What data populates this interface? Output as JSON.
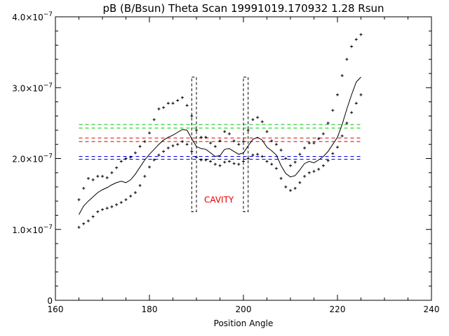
{
  "chart_data": {
    "type": "scatter",
    "title": "pB (B/Bsun) Theta Scan 19991019.170932 1.28 Rsun",
    "xlabel": "Position Angle",
    "ylabel": "",
    "xlim": [
      160,
      240
    ],
    "ylim": [
      0,
      4e-07
    ],
    "x_ticks": [
      160,
      180,
      200,
      220,
      240
    ],
    "x_tick_labels": [
      "160",
      "180",
      "200",
      "220",
      "240"
    ],
    "y_ticks": [
      0,
      1e-07,
      2e-07,
      3e-07,
      4e-07
    ],
    "y_tick_labels": [
      {
        "mant": "0",
        "exp": ""
      },
      {
        "mant": "1.0×10",
        "exp": "−7"
      },
      {
        "mant": "2.0×10",
        "exp": "−7"
      },
      {
        "mant": "3.0×10",
        "exp": "−7"
      },
      {
        "mant": "4.0×10",
        "exp": "−7"
      }
    ],
    "grid": false,
    "colors": {
      "axes": "#000000",
      "green": "#00c800",
      "red": "#e00000",
      "blue": "#0000e0"
    },
    "series": [
      {
        "style": "line",
        "x": [
          165,
          166,
          167,
          168,
          169,
          170,
          171,
          172,
          173,
          174,
          175,
          176,
          177,
          178,
          179,
          180,
          181,
          182,
          183,
          184,
          185,
          186,
          187,
          188,
          189,
          190,
          191,
          192,
          193,
          194,
          195,
          196,
          197,
          198,
          199,
          200,
          201,
          202,
          203,
          204,
          205,
          206,
          207,
          208,
          209,
          210,
          211,
          212,
          213,
          214,
          215,
          216,
          217,
          218,
          219,
          220,
          221,
          222,
          223,
          224,
          225
        ],
        "y": [
          1.21e-07,
          1.33e-07,
          1.4e-07,
          1.46e-07,
          1.52e-07,
          1.56e-07,
          1.59e-07,
          1.63e-07,
          1.66e-07,
          1.68e-07,
          1.66e-07,
          1.7e-07,
          1.78e-07,
          1.88e-07,
          1.98e-07,
          2.06e-07,
          2.13e-07,
          2.2e-07,
          2.26e-07,
          2.3e-07,
          2.33e-07,
          2.37e-07,
          2.41e-07,
          2.4e-07,
          2.28e-07,
          2.17e-07,
          2.14e-07,
          2.13e-07,
          2.08e-07,
          2.03e-07,
          2.04e-07,
          2.13e-07,
          2.14e-07,
          2.1e-07,
          2.06e-07,
          2.08e-07,
          2.18e-07,
          2.27e-07,
          2.3e-07,
          2.26e-07,
          2.16e-07,
          2.11e-07,
          2.05e-07,
          1.9e-07,
          1.79e-07,
          1.74e-07,
          1.76e-07,
          1.84e-07,
          1.93e-07,
          1.96e-07,
          1.94e-07,
          1.98e-07,
          2.03e-07,
          2.1e-07,
          2.2e-07,
          2.3e-07,
          2.48e-07,
          2.7e-07,
          2.9e-07,
          3.08e-07,
          3.15e-07
        ]
      },
      {
        "style": "plus",
        "x": [
          165,
          166,
          167,
          168,
          169,
          170,
          171,
          172,
          173,
          174,
          175,
          176,
          177,
          178,
          179,
          180,
          181,
          182,
          183,
          184,
          185,
          186,
          187,
          188,
          189,
          190,
          191,
          192,
          193,
          194,
          195,
          196,
          197,
          198,
          199,
          200,
          201,
          202,
          203,
          204,
          205,
          206,
          207,
          208,
          209,
          210,
          211,
          212,
          213,
          214,
          215,
          216,
          217,
          218,
          219,
          220,
          221,
          222,
          223,
          224,
          225
        ],
        "y": [
          1.42e-07,
          1.58e-07,
          1.72e-07,
          1.7e-07,
          1.75e-07,
          1.75e-07,
          1.73e-07,
          1.8e-07,
          1.87e-07,
          1.96e-07,
          2e-07,
          2.02e-07,
          2.08e-07,
          2.17e-07,
          2.24e-07,
          2.36e-07,
          2.55e-07,
          2.7e-07,
          2.72e-07,
          2.78e-07,
          2.78e-07,
          2.82e-07,
          2.86e-07,
          2.75e-07,
          2.6e-07,
          2.4e-07,
          2.3e-07,
          2.3e-07,
          2.22e-07,
          2.17e-07,
          2.25e-07,
          2.38e-07,
          2.35e-07,
          2.25e-07,
          2.2e-07,
          2.24e-07,
          2.4e-07,
          2.55e-07,
          2.58e-07,
          2.52e-07,
          2.38e-07,
          2.25e-07,
          2.2e-07,
          2.12e-07,
          2e-07,
          1.9e-07,
          1.95e-07,
          2.06e-07,
          2.15e-07,
          2.22e-07,
          2.22e-07,
          2.28e-07,
          2.35e-07,
          2.5e-07,
          2.68e-07,
          2.9e-07,
          3.17e-07,
          3.4e-07,
          3.58e-07,
          3.68e-07,
          3.75e-07
        ]
      },
      {
        "style": "plus",
        "x": [
          165,
          166,
          167,
          168,
          169,
          170,
          171,
          172,
          173,
          174,
          175,
          176,
          177,
          178,
          179,
          180,
          181,
          182,
          183,
          184,
          185,
          186,
          187,
          188,
          189,
          190,
          191,
          192,
          193,
          194,
          195,
          196,
          197,
          198,
          199,
          200,
          201,
          202,
          203,
          204,
          205,
          206,
          207,
          208,
          209,
          210,
          211,
          212,
          213,
          214,
          215,
          216,
          217,
          218,
          219,
          220,
          221,
          222,
          223,
          224,
          225
        ],
        "y": [
          1.03e-07,
          1.08e-07,
          1.12e-07,
          1.18e-07,
          1.25e-07,
          1.28e-07,
          1.3e-07,
          1.32e-07,
          1.35e-07,
          1.38e-07,
          1.42e-07,
          1.47e-07,
          1.52e-07,
          1.62e-07,
          1.75e-07,
          1.88e-07,
          1.98e-07,
          2.05e-07,
          2.1e-07,
          2.15e-07,
          2.18e-07,
          2.2e-07,
          2.24e-07,
          2.2e-07,
          2.1e-07,
          2.02e-07,
          1.98e-07,
          1.98e-07,
          1.96e-07,
          1.92e-07,
          1.9e-07,
          1.95e-07,
          1.96e-07,
          1.93e-07,
          1.92e-07,
          1.96e-07,
          2e-07,
          2.05e-07,
          2.06e-07,
          2.03e-07,
          1.96e-07,
          1.92e-07,
          1.86e-07,
          1.72e-07,
          1.6e-07,
          1.55e-07,
          1.58e-07,
          1.66e-07,
          1.75e-07,
          1.8e-07,
          1.82e-07,
          1.85e-07,
          1.9e-07,
          1.97e-07,
          2.07e-07,
          2.16e-07,
          2.32e-07,
          2.5e-07,
          2.65e-07,
          2.78e-07,
          2.9e-07
        ]
      }
    ],
    "reference_lines": [
      {
        "color": "green",
        "y": [
          2.48e-07,
          2.43e-07
        ]
      },
      {
        "color": "red",
        "y": [
          2.29e-07,
          2.24e-07
        ]
      },
      {
        "color": "blue",
        "y": [
          2.03e-07,
          1.99e-07
        ]
      }
    ],
    "cavity_boxes": [
      {
        "x": [
          189,
          190
        ],
        "y": [
          1.25e-07,
          3.15e-07
        ]
      },
      {
        "x": [
          200,
          201
        ],
        "y": [
          1.25e-07,
          3.15e-07
        ]
      }
    ],
    "annotations": [
      {
        "text": "CAVITY",
        "x": 194.8,
        "y": 1.38e-07,
        "color": "red"
      }
    ]
  }
}
